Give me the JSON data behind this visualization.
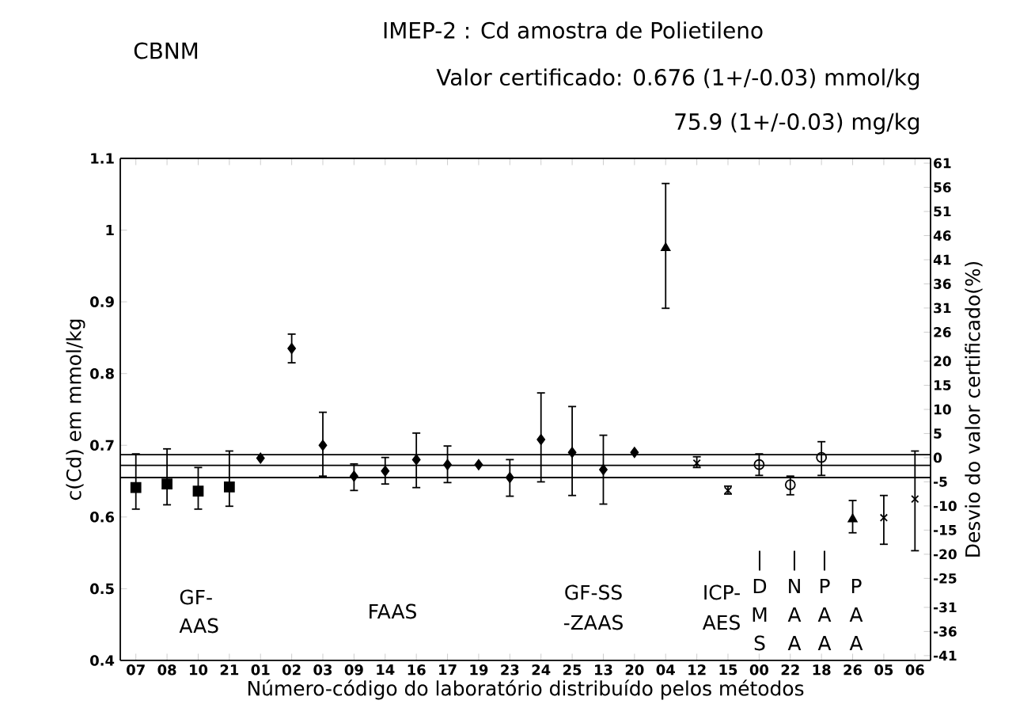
{
  "chart_data": {
    "type": "scatter",
    "title": "IMEP-2 : Cd amostra de Polietileno",
    "subtitle": "Valor certificado: 0.676 (1+/-0.03) mmol/kg",
    "xlabel": "Número-código do laboratório distribuído pelos métodos",
    "ylabel": "c(Cd) em mmol/kg",
    "y2label": "Desvio do valor certificado(%)",
    "categories": [
      "07",
      "08",
      "10",
      "21",
      "01",
      "02",
      "03",
      "09",
      "14",
      "16",
      "17",
      "19",
      "23",
      "24",
      "25",
      "13",
      "20",
      "04",
      "12",
      "15",
      "00",
      "22",
      "18",
      "26",
      "05",
      "06"
    ],
    "ylim": [
      0.4,
      1.1
    ],
    "yticks": [
      0.4,
      0.5,
      0.6,
      0.7,
      0.8,
      0.9,
      1,
      1.1
    ],
    "y2lim": [
      -42,
      62
    ],
    "y2ticks": [
      61,
      56,
      51,
      46,
      41,
      36,
      31,
      26,
      20,
      15,
      10,
      5,
      0,
      -5,
      -10,
      -15,
      -20,
      -25,
      -31,
      -36,
      -41
    ],
    "series": [
      {
        "color": "#000000",
        "marker": "square",
        "values": [
          0.641,
          0.646,
          0.636,
          0.642,
          null,
          null,
          null,
          null,
          null,
          null,
          null,
          null,
          null,
          null,
          null,
          null,
          null,
          null,
          null,
          null,
          null,
          null,
          null,
          null,
          null,
          null
        ],
        "errors": [
          [
            0.611,
            0.688
          ],
          [
            0.617,
            0.695
          ],
          [
            0.611,
            0.669
          ],
          [
            0.615,
            0.692
          ],
          null,
          null,
          null,
          null,
          null,
          null,
          null,
          null,
          null,
          null,
          null,
          null,
          null,
          null,
          null,
          null,
          null,
          null,
          null,
          null,
          null,
          null
        ]
      },
      {
        "color": "#000000",
        "marker": "diamond",
        "values": [
          null,
          null,
          null,
          null,
          0.682,
          0.835,
          0.7,
          0.657,
          0.664,
          0.68,
          0.673,
          0.673,
          0.655,
          0.708,
          0.69,
          0.666,
          0.69,
          null,
          null,
          null,
          null,
          null,
          null,
          null,
          null,
          null
        ],
        "errors": [
          null,
          null,
          null,
          null,
          null,
          [
            0.815,
            0.855
          ],
          [
            0.657,
            0.746
          ],
          [
            0.637,
            0.674
          ],
          [
            0.646,
            0.683
          ],
          [
            0.641,
            0.717
          ],
          [
            0.648,
            0.699
          ],
          null,
          [
            0.629,
            0.68
          ],
          [
            0.649,
            0.773
          ],
          [
            0.63,
            0.754
          ],
          [
            0.618,
            0.714
          ],
          null,
          null,
          null,
          null,
          null,
          null,
          null,
          null,
          null,
          null
        ]
      },
      {
        "color": "#000000",
        "marker": "triangle",
        "values": [
          null,
          null,
          null,
          null,
          null,
          null,
          null,
          null,
          null,
          null,
          null,
          null,
          null,
          null,
          null,
          null,
          null,
          0.975,
          null,
          null,
          null,
          null,
          null,
          0.597,
          null,
          null
        ],
        "errors": [
          null,
          null,
          null,
          null,
          null,
          null,
          null,
          null,
          null,
          null,
          null,
          null,
          null,
          null,
          null,
          null,
          null,
          [
            0.891,
            1.065
          ],
          null,
          null,
          null,
          null,
          null,
          [
            0.578,
            0.623
          ],
          null,
          null
        ]
      },
      {
        "color": "#000000",
        "marker": "cross",
        "values": [
          null,
          null,
          null,
          null,
          null,
          null,
          null,
          null,
          null,
          null,
          null,
          null,
          null,
          null,
          null,
          null,
          null,
          null,
          0.675,
          0.637,
          null,
          null,
          null,
          null,
          0.599,
          0.625
        ],
        "errors": [
          null,
          null,
          null,
          null,
          null,
          null,
          null,
          null,
          null,
          null,
          null,
          null,
          null,
          null,
          null,
          null,
          null,
          null,
          [
            0.669,
            0.684
          ],
          [
            0.632,
            0.643
          ],
          null,
          null,
          null,
          null,
          [
            0.562,
            0.63
          ],
          [
            0.553,
            0.692
          ]
        ]
      },
      {
        "color": "#000000",
        "marker": "circle",
        "values": [
          null,
          null,
          null,
          null,
          null,
          null,
          null,
          null,
          null,
          null,
          null,
          null,
          null,
          null,
          null,
          null,
          null,
          null,
          null,
          null,
          0.673,
          0.645,
          0.683,
          null,
          null,
          null
        ],
        "errors": [
          null,
          null,
          null,
          null,
          null,
          null,
          null,
          null,
          null,
          null,
          null,
          null,
          null,
          null,
          null,
          null,
          null,
          null,
          null,
          null,
          [
            0.658,
            0.688
          ],
          [
            0.631,
            0.657
          ],
          [
            0.658,
            0.705
          ],
          null,
          null,
          null
        ]
      }
    ],
    "ref_lines": [
      {
        "axis": "y",
        "value": 0.687,
        "color": "#000000"
      },
      {
        "axis": "y",
        "value": 0.672,
        "color": "#000000"
      },
      {
        "axis": "y",
        "value": 0.655,
        "color": "#000000"
      }
    ],
    "annotations": [
      "CBNM",
      "75.9 (1+/-0.03) mg/kg",
      "GF-",
      "AAS",
      "FAAS",
      "GF-SS",
      "-ZAAS",
      "ICP-",
      "AES",
      "|",
      "D",
      "M",
      "S",
      "|",
      "N",
      "A",
      "A",
      "|",
      "P",
      "A",
      "A",
      "P",
      "A",
      "A"
    ]
  }
}
